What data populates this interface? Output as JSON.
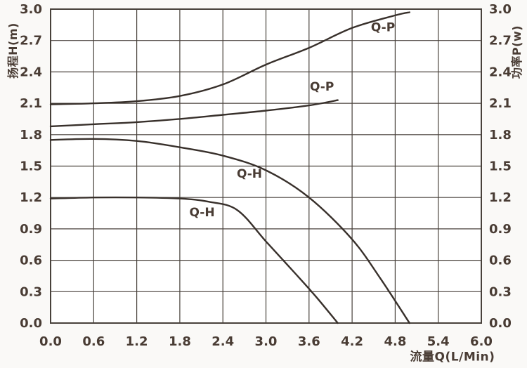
{
  "chart_data": {
    "type": "line",
    "title": "",
    "grid": true,
    "legend_position": "none",
    "x_axis": {
      "label": "流量Q(L/Min)",
      "min": 0.0,
      "max": 6.0,
      "step": 0.6,
      "ticks": [
        "0.0",
        "0.6",
        "1.2",
        "1.8",
        "2.4",
        "3.0",
        "3.6",
        "4.2",
        "4.8",
        "5.4",
        "6.0"
      ]
    },
    "y_axis_left": {
      "label": "扬程H(m)",
      "min": 0.0,
      "max": 3.0,
      "step": 0.3,
      "ticks": [
        "0.0",
        "0.3",
        "0.6",
        "0.9",
        "1.2",
        "1.5",
        "1.8",
        "2.1",
        "2.4",
        "2.7",
        "3.0"
      ]
    },
    "y_axis_right": {
      "label": "功率P(w)",
      "min": 0.0,
      "max": 3.0,
      "step": 0.3,
      "ticks": [
        "0.0",
        "0.3",
        "0.6",
        "0.9",
        "1.2",
        "1.5",
        "1.8",
        "2.1",
        "2.4",
        "2.7",
        "3.0"
      ]
    },
    "series": [
      {
        "name": "Q-P-upper",
        "label": "Q-P",
        "label_anchor": {
          "q": 4.63,
          "v": 2.79
        },
        "points": [
          [
            0.0,
            2.09
          ],
          [
            0.6,
            2.1
          ],
          [
            1.2,
            2.12
          ],
          [
            1.8,
            2.17
          ],
          [
            2.4,
            2.28
          ],
          [
            3.0,
            2.47
          ],
          [
            3.6,
            2.63
          ],
          [
            4.2,
            2.82
          ],
          [
            4.8,
            2.94
          ],
          [
            5.0,
            2.97
          ]
        ]
      },
      {
        "name": "Q-P-lower",
        "label": "Q-P",
        "label_anchor": {
          "q": 3.78,
          "v": 2.22
        },
        "points": [
          [
            0.0,
            1.88
          ],
          [
            0.6,
            1.9
          ],
          [
            1.2,
            1.92
          ],
          [
            1.8,
            1.95
          ],
          [
            2.4,
            1.99
          ],
          [
            3.0,
            2.03
          ],
          [
            3.6,
            2.08
          ],
          [
            4.0,
            2.13
          ]
        ]
      },
      {
        "name": "Q-H-upper",
        "label": "Q-H",
        "label_anchor": {
          "q": 2.77,
          "v": 1.39
        },
        "points": [
          [
            0.0,
            1.75
          ],
          [
            0.6,
            1.76
          ],
          [
            1.2,
            1.74
          ],
          [
            1.8,
            1.68
          ],
          [
            2.4,
            1.6
          ],
          [
            3.0,
            1.46
          ],
          [
            3.6,
            1.2
          ],
          [
            4.2,
            0.8
          ],
          [
            4.6,
            0.42
          ],
          [
            5.0,
            0.0
          ]
        ]
      },
      {
        "name": "Q-H-lower",
        "label": "Q-H",
        "label_anchor": {
          "q": 2.11,
          "v": 1.02
        },
        "points": [
          [
            0.0,
            1.19
          ],
          [
            0.6,
            1.2
          ],
          [
            1.2,
            1.2
          ],
          [
            1.8,
            1.19
          ],
          [
            2.2,
            1.16
          ],
          [
            2.6,
            1.08
          ],
          [
            3.0,
            0.78
          ],
          [
            3.4,
            0.48
          ],
          [
            3.7,
            0.25
          ],
          [
            4.0,
            0.0
          ]
        ]
      }
    ],
    "colors": {
      "curve": "#38302b",
      "grid": "#48413b",
      "text": "#493c34",
      "background": "#faf9f7",
      "plot_background": "#ffffff"
    }
  }
}
